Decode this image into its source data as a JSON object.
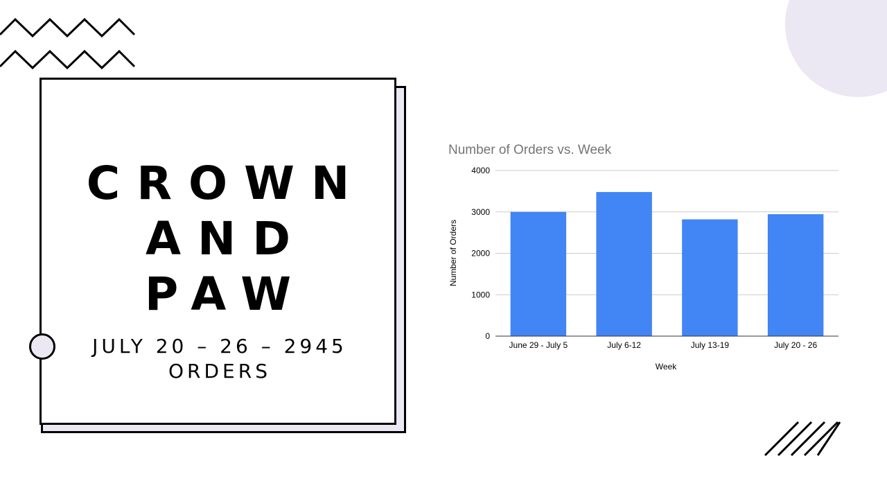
{
  "slide": {
    "brand_lines": [
      "CROWN",
      "AND",
      "PAW"
    ],
    "subtitle_lines": [
      "JULY 20 – 26 – 2945",
      "ORDERS"
    ]
  },
  "decorations": {
    "zigzag": "zigzag-lines",
    "circle": "circle-shape",
    "stripes": "diagonal-stripes",
    "accent_color": "#ebe8f4"
  },
  "chart_data": {
    "type": "bar",
    "title": "Number of Orders vs. Week",
    "xlabel": "Week",
    "ylabel": "Number of Orders",
    "categories": [
      "June 29 - July 5",
      "July 6-12",
      "July 13-19",
      "July 20 - 26"
    ],
    "values": [
      3000,
      3480,
      2820,
      2945
    ],
    "ylim": [
      0,
      4000
    ],
    "yticks": [
      0,
      1000,
      2000,
      3000,
      4000
    ],
    "grid": true,
    "bar_color": "#4285f4"
  }
}
